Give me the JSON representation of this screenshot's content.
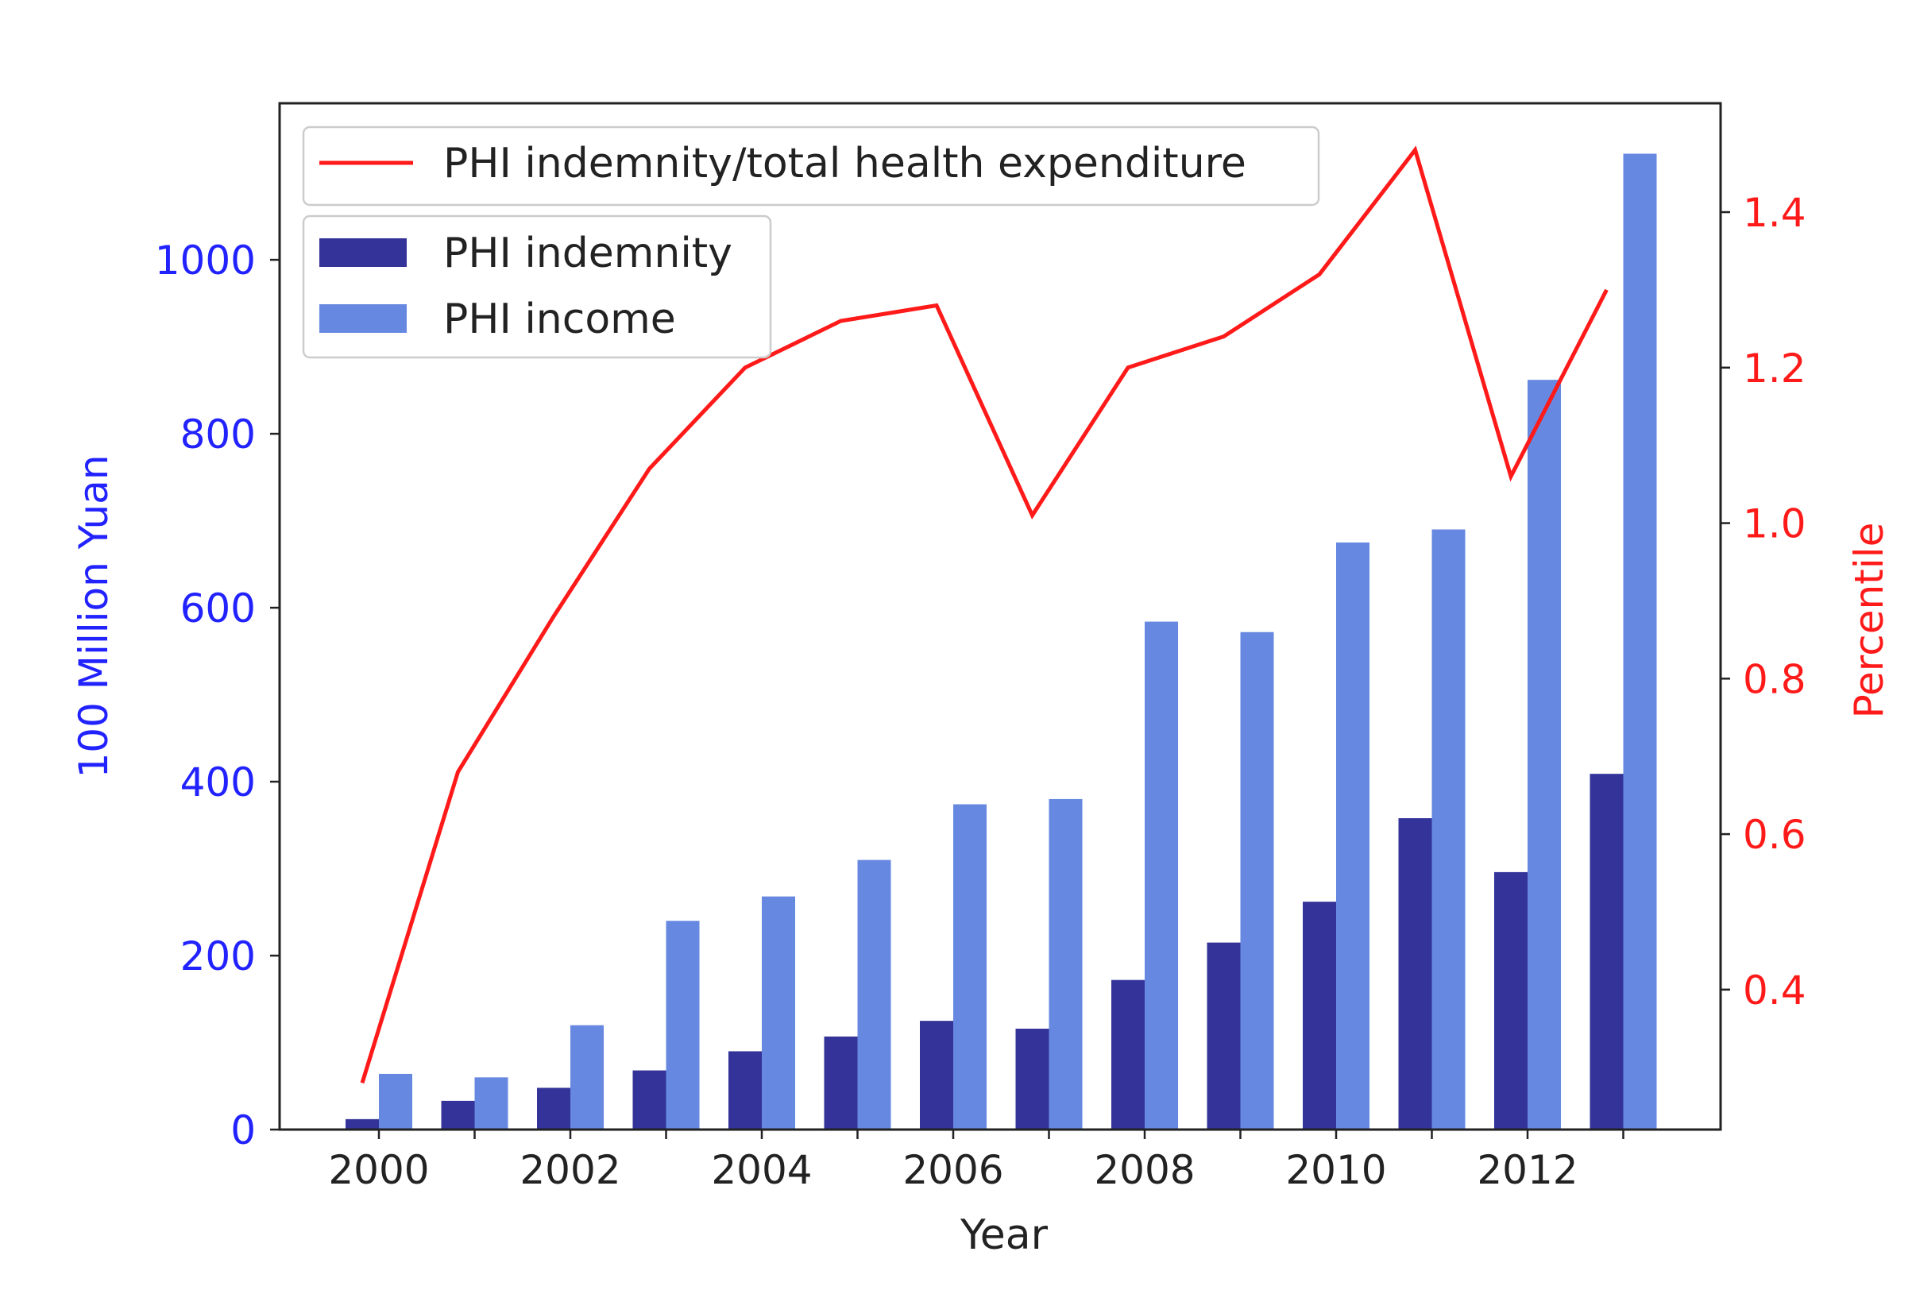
{
  "chart_data": {
    "type": "bar+line",
    "title": "",
    "xlabel": "Year",
    "ylabel_left": "100 Million Yuan",
    "ylabel_right": "Percentile",
    "categories": [
      2000,
      2001,
      2002,
      2003,
      2004,
      2005,
      2006,
      2007,
      2008,
      2009,
      2010,
      2011,
      2012,
      2013
    ],
    "x_ticks": [
      2000,
      2002,
      2004,
      2006,
      2008,
      2010,
      2012
    ],
    "ylim_left": [
      0,
      1180
    ],
    "yticks_left": [
      0,
      200,
      400,
      600,
      800,
      1000
    ],
    "ylim_right": [
      0.22,
      1.54
    ],
    "yticks_right": [
      0.4,
      0.6,
      0.8,
      1.0,
      1.2,
      1.4
    ],
    "grid": false,
    "series": [
      {
        "name": "PHI indemnity",
        "kind": "bar",
        "axis": "left",
        "color": "#333399",
        "values": [
          12,
          33,
          48,
          68,
          90,
          107,
          125,
          116,
          172,
          215,
          262,
          358,
          296,
          409
        ]
      },
      {
        "name": "PHI income",
        "kind": "bar",
        "axis": "left",
        "color": "#6688e0",
        "values": [
          64,
          60,
          120,
          240,
          268,
          310,
          374,
          380,
          584,
          572,
          675,
          690,
          862,
          1122
        ]
      },
      {
        "name": "PHI indemnity/total health expenditure",
        "kind": "line",
        "axis": "right",
        "color": "#ff1a1a",
        "values": [
          0.28,
          0.68,
          0.88,
          1.07,
          1.2,
          1.26,
          1.28,
          1.01,
          1.2,
          1.24,
          1.32,
          1.48,
          1.06,
          1.3
        ]
      }
    ],
    "legend_line": {
      "label": "PHI indemnity/total health expenditure",
      "placement": "top-left"
    },
    "legend_bars": [
      {
        "label": "PHI indemnity",
        "color": "#333399"
      },
      {
        "label": "PHI income",
        "color": "#6688e0"
      }
    ],
    "left_axis_color": "#2222ff",
    "right_axis_color": "#ff1a1a"
  }
}
